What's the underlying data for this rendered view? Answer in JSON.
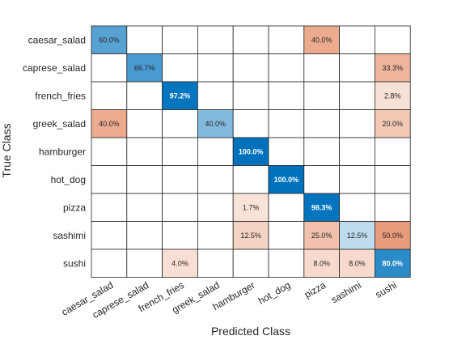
{
  "chart_data": {
    "type": "heatmap",
    "title": "",
    "xlabel": "Predicted Class",
    "ylabel": "True Class",
    "row_labels": [
      "caesar_salad",
      "caprese_salad",
      "french_fries",
      "greek_salad",
      "hamburger",
      "hot_dog",
      "pizza",
      "sashimi",
      "sushi"
    ],
    "col_labels": [
      "caesar_salad",
      "caprese_salad",
      "french_fries",
      "greek_salad",
      "hamburger",
      "hot_dog",
      "pizza",
      "sashimi",
      "sushi"
    ],
    "values": [
      [
        60.0,
        null,
        null,
        null,
        null,
        null,
        40.0,
        null,
        null
      ],
      [
        null,
        66.7,
        null,
        null,
        null,
        null,
        null,
        null,
        33.3
      ],
      [
        null,
        null,
        97.2,
        null,
        null,
        null,
        null,
        null,
        2.8
      ],
      [
        40.0,
        null,
        null,
        40.0,
        null,
        null,
        null,
        null,
        20.0
      ],
      [
        null,
        null,
        null,
        null,
        100.0,
        null,
        null,
        null,
        null
      ],
      [
        null,
        null,
        null,
        null,
        null,
        100.0,
        null,
        null,
        null
      ],
      [
        null,
        null,
        null,
        null,
        1.7,
        null,
        98.3,
        null,
        null
      ],
      [
        null,
        null,
        null,
        null,
        12.5,
        null,
        25.0,
        12.5,
        50.0
      ],
      [
        null,
        null,
        4.0,
        null,
        null,
        null,
        8.0,
        8.0,
        80.0
      ]
    ],
    "value_unit": "%",
    "colors": {
      "correct": "#0072bd",
      "incorrect": "#d95319",
      "grid": "#262626",
      "text_dark": "#262626",
      "text_light": "#ffffff"
    }
  }
}
